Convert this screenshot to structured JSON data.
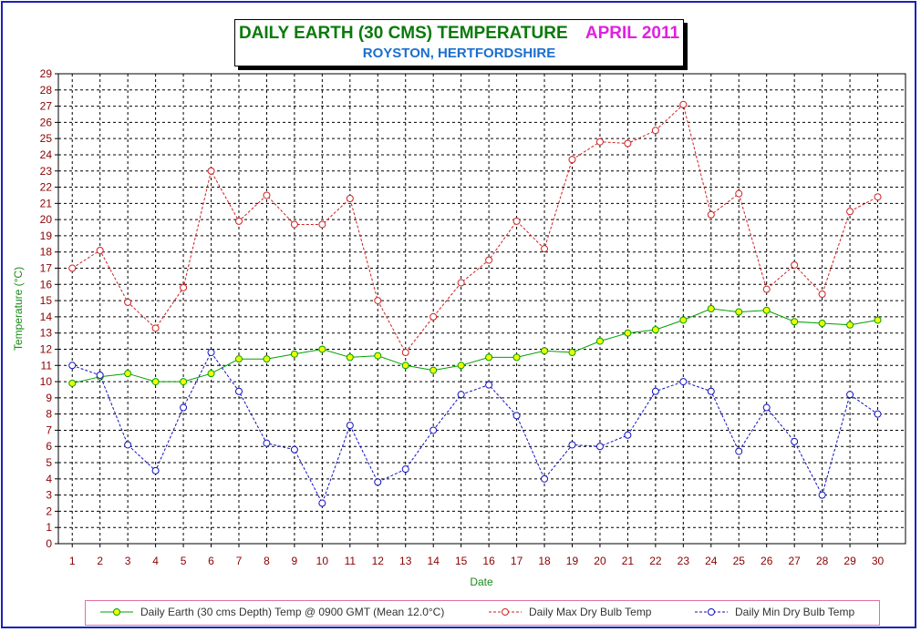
{
  "title": {
    "main": "DAILY EARTH (30 CMS) TEMPERATURE",
    "month": "APRIL 2011",
    "subtitle": "ROYSTON, HERTFORDSHIRE"
  },
  "colors": {
    "frame": "#1a22b8",
    "title_green": "#0a7a0a",
    "title_magenta": "#e020e0",
    "subtitle_blue": "#1a6fd0",
    "earth_line": "#00a000",
    "earth_marker_fill": "#f0ff00",
    "max_line": "#d02020",
    "min_line": "#1010c0",
    "x_tick": "#8b0000",
    "axis_label": "#1a8a1a"
  },
  "chart_data": {
    "type": "line",
    "xlabel": "Date",
    "ylabel": "Temperature (°C)",
    "ylim": [
      0,
      29
    ],
    "y_ticks": [
      0,
      1,
      2,
      3,
      4,
      5,
      6,
      7,
      8,
      9,
      10,
      11,
      12,
      13,
      14,
      15,
      16,
      17,
      18,
      19,
      20,
      21,
      22,
      23,
      24,
      25,
      26,
      27,
      28,
      29
    ],
    "grid": true,
    "legend_position": "bottom",
    "x": [
      "1",
      "2",
      "3",
      "4",
      "5",
      "6",
      "7",
      "8",
      "9",
      "10",
      "11",
      "12",
      "13",
      "14",
      "15",
      "16",
      "17",
      "18",
      "19",
      "20",
      "21",
      "22",
      "23",
      "24",
      "25",
      "26",
      "27",
      "28",
      "29",
      "30"
    ],
    "series": [
      {
        "name": "Daily Earth (30 cms Depth) Temp @ 0900 GMT (Mean 12.0°C)",
        "style": "solid-filled-circle",
        "values": [
          9.9,
          10.3,
          10.5,
          10.0,
          10.0,
          10.5,
          11.4,
          11.4,
          11.7,
          12.0,
          11.5,
          11.6,
          11.0,
          10.7,
          11.0,
          11.5,
          11.5,
          11.9,
          11.8,
          12.5,
          13.0,
          13.2,
          13.8,
          14.5,
          14.3,
          14.4,
          13.7,
          13.6,
          13.5,
          13.8
        ]
      },
      {
        "name": "Daily Max Dry Bulb Temp",
        "style": "dashed-open-circle",
        "values": [
          17.0,
          18.1,
          14.9,
          13.3,
          15.8,
          23.0,
          19.9,
          21.5,
          19.7,
          19.7,
          21.3,
          15.0,
          11.8,
          14.0,
          16.1,
          17.5,
          19.9,
          18.2,
          23.7,
          24.8,
          24.7,
          25.5,
          27.1,
          20.3,
          21.6,
          15.7,
          17.2,
          15.4,
          20.5,
          21.4
        ]
      },
      {
        "name": "Daily Min Dry Bulb Temp",
        "style": "dashed-open-circle",
        "values": [
          11.0,
          10.4,
          6.1,
          4.5,
          8.4,
          11.8,
          9.4,
          6.2,
          5.8,
          2.5,
          7.3,
          3.8,
          4.6,
          7.0,
          9.2,
          9.8,
          7.9,
          4.0,
          6.1,
          6.0,
          6.7,
          9.4,
          10.0,
          9.4,
          5.7,
          8.4,
          6.3,
          3.0,
          9.2,
          8.0
        ]
      }
    ]
  }
}
